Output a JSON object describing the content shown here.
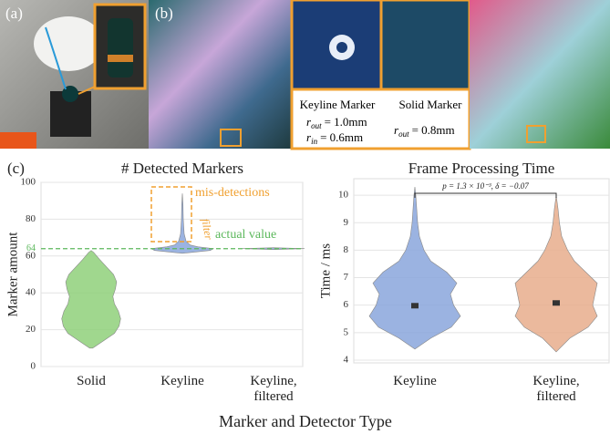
{
  "panel_labels": [
    "(a)",
    "(b)",
    "(c)"
  ],
  "insets": [
    {
      "label": "Keyline Marker",
      "params": [
        {
          "symbol": "r",
          "sub": "out",
          "value": "= 1.0mm"
        },
        {
          "symbol": "r",
          "sub": "in",
          "value": "= 0.6mm"
        }
      ]
    },
    {
      "label": "Solid Marker",
      "params": [
        {
          "symbol": "r",
          "sub": "out",
          "value": "= 0.8mm"
        }
      ]
    }
  ],
  "xlabel": "Marker and Detector Type",
  "chart_data": [
    {
      "type": "violin",
      "title": "# Detected Markers",
      "ylabel": "Marker amount",
      "ylim": [
        0,
        100
      ],
      "yticks": [
        0,
        20,
        40,
        60,
        80,
        100
      ],
      "grid": true,
      "categories": [
        "Solid",
        "Keyline",
        "Keyline, filtered"
      ],
      "violins": [
        {
          "color": "#8fd07a",
          "y": [
            10,
            14,
            18,
            22,
            26,
            30,
            34,
            38,
            42,
            46,
            50,
            54,
            58,
            62,
            63
          ],
          "width": [
            0.05,
            0.4,
            0.75,
            0.9,
            0.95,
            0.88,
            0.75,
            0.7,
            0.78,
            0.82,
            0.72,
            0.5,
            0.28,
            0.08,
            0
          ]
        },
        {
          "color": "#8aa6dc",
          "y": [
            61.5,
            62,
            63,
            64,
            65,
            66,
            68,
            72,
            80,
            88,
            94
          ],
          "width": [
            0,
            0.3,
            0.9,
            1,
            0.5,
            0.25,
            0.12,
            0.06,
            0.03,
            0.02,
            0
          ]
        },
        {
          "color": "#8aa6dc",
          "y": [
            63.5,
            64,
            64.5
          ],
          "width": [
            0,
            1,
            0
          ]
        }
      ],
      "reference_line": 64,
      "reference_color": "#5cb85c",
      "annotations": [
        "mis-detections",
        "filter",
        "actual value"
      ]
    },
    {
      "type": "violin",
      "title": "Frame Processing Time",
      "ylabel": "Time / ms",
      "ylim": [
        3.9,
        10.6
      ],
      "yticks": [
        4,
        5,
        6,
        7,
        8,
        9,
        10
      ],
      "grid": true,
      "categories": [
        "Keyline",
        "Keyline, filtered"
      ],
      "violins": [
        {
          "color": "#8aa6dc",
          "y": [
            4.4,
            4.8,
            5.2,
            5.6,
            6,
            6.4,
            6.8,
            7.2,
            7.6,
            8,
            8.5,
            9,
            9.5,
            10,
            10.3
          ],
          "width": [
            0,
            0.35,
            0.8,
            1,
            0.85,
            0.78,
            0.92,
            0.7,
            0.35,
            0.2,
            0.1,
            0.06,
            0.04,
            0.02,
            0
          ]
        },
        {
          "color": "#e8ad8c",
          "y": [
            4.3,
            4.8,
            5.2,
            5.6,
            6,
            6.4,
            6.8,
            7.2,
            7.6,
            8,
            8.5,
            9,
            9.5,
            10
          ],
          "width": [
            0,
            0.3,
            0.7,
            0.9,
            0.8,
            0.85,
            0.9,
            0.65,
            0.4,
            0.25,
            0.12,
            0.07,
            0.04,
            0
          ]
        }
      ],
      "means": [
        5.98,
        6.08
      ],
      "errors": [
        0.05,
        0.06
      ],
      "annotations": [
        "p = 1.3 × 10⁻³, δ = −0.07"
      ]
    }
  ]
}
